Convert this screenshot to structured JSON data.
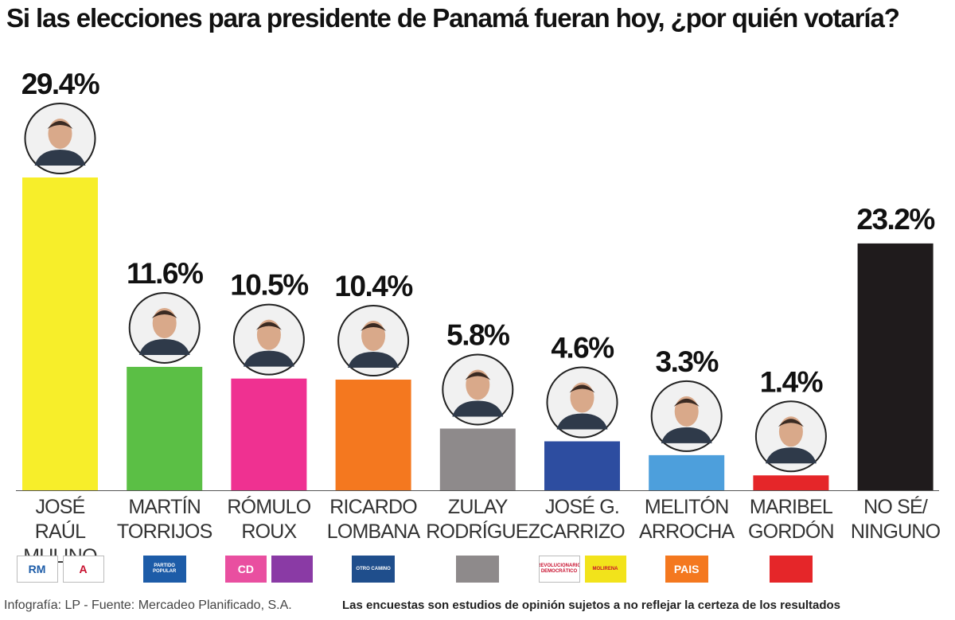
{
  "chart_data": {
    "type": "bar",
    "title": "Si las elecciones para presidente de Panamá fueran hoy, ¿por quién votaría?",
    "categories": [
      [
        "JOSÉ RAÚL",
        "MULINO"
      ],
      [
        "MARTÍN",
        "TORRIJOS"
      ],
      [
        "RÓMULO",
        "ROUX"
      ],
      [
        "RICARDO",
        "LOMBANA"
      ],
      [
        "ZULAY",
        "RODRÍGUEZ"
      ],
      [
        "JOSÉ G.",
        "CARRIZO"
      ],
      [
        "MELITÓN",
        "ARROCHA"
      ],
      [
        "MARIBEL",
        "GORDÓN"
      ],
      [
        "NO SÉ/",
        "NINGUNO"
      ]
    ],
    "values": [
      29.4,
      11.6,
      10.5,
      10.4,
      5.8,
      4.6,
      3.3,
      1.4,
      23.2
    ],
    "value_labels": [
      "29.4%",
      "11.6%",
      "10.5%",
      "10.4%",
      "5.8%",
      "4.6%",
      "3.3%",
      "1.4%",
      "23.2%"
    ],
    "colors": [
      "#f7ee2a",
      "#5bbf45",
      "#ef3191",
      "#f4781f",
      "#8e8a8b",
      "#2d4da0",
      "#4d9fdc",
      "#e52629",
      "#1f1b1c"
    ],
    "ylim": [
      0,
      30
    ],
    "grid": false,
    "legend": "none"
  },
  "party_logos": [
    [
      {
        "name": "rm-logo",
        "color": "#ffffff",
        "text": "RM"
      },
      {
        "name": "alianza-logo",
        "color": "#ffffff",
        "text": "A"
      }
    ],
    [
      {
        "name": "partido-popular-logo",
        "color": "#1d5ca8",
        "text": "PARTIDO POPULAR"
      }
    ],
    [
      {
        "name": "cambio-democratico-logo",
        "color": "#e94fa0",
        "text": "CD"
      },
      {
        "name": "secondary-party-logo",
        "color": "#8a3aa5",
        "text": ""
      }
    ],
    [
      {
        "name": "otro-camino-logo",
        "color": "#1f4e8c",
        "text": "OTRO CAMINO"
      }
    ],
    [
      {
        "name": "independent-grey-swatch",
        "color": "#8e8a8b",
        "text": ""
      }
    ],
    [
      {
        "name": "prd-logo",
        "color": "#ffffff",
        "text": "REVOLUCIONARIO DEMOCRÁTICO"
      },
      {
        "name": "molirena-logo",
        "color": "#f2e31b",
        "text": "MOLIRENA"
      }
    ],
    [
      {
        "name": "pais-logo",
        "color": "#f4781f",
        "text": "PAIS"
      }
    ],
    [
      {
        "name": "independent-red-swatch",
        "color": "#e52629",
        "text": ""
      }
    ],
    []
  ],
  "footer": {
    "credit": "Infografía: LP - Fuente: Mercadeo Planificado, S.A.",
    "disclaimer": "Las encuestas son estudios de opinión sujetos a no reflejar la certeza de los resultados"
  }
}
